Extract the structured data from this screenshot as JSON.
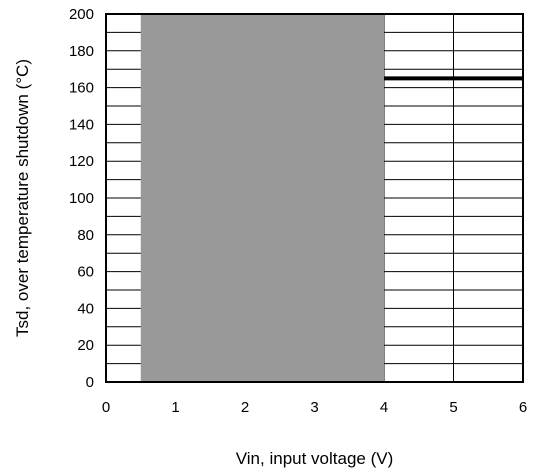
{
  "chart_data": {
    "type": "line",
    "xlabel": "Vin, input voltage (V)",
    "ylabel": "Tsd, over temperature shutdown (°C)",
    "xlim": [
      0,
      6
    ],
    "ylim": [
      0,
      200
    ],
    "x_ticks": [
      0,
      1,
      2,
      3,
      4,
      5,
      6
    ],
    "y_ticks": [
      0,
      20,
      40,
      60,
      80,
      100,
      120,
      140,
      160,
      180,
      200
    ],
    "x_tick_labels": [
      "0",
      "1",
      "2",
      "3",
      "4",
      "5",
      "6"
    ],
    "y_tick_labels": [
      "0",
      "20",
      "40",
      "60",
      "80",
      "100",
      "120",
      "140",
      "160",
      "180",
      "200"
    ],
    "grid": true,
    "shaded_region": {
      "x": [
        0.5,
        4
      ],
      "y": [
        0,
        200
      ],
      "color": "#999999"
    },
    "series": [
      {
        "x": [
          4,
          6
        ],
        "y": [
          165,
          165
        ],
        "color": "#000000"
      }
    ]
  },
  "colors": {
    "shade": "#999999",
    "line": "#000000",
    "grid": "#000000"
  }
}
